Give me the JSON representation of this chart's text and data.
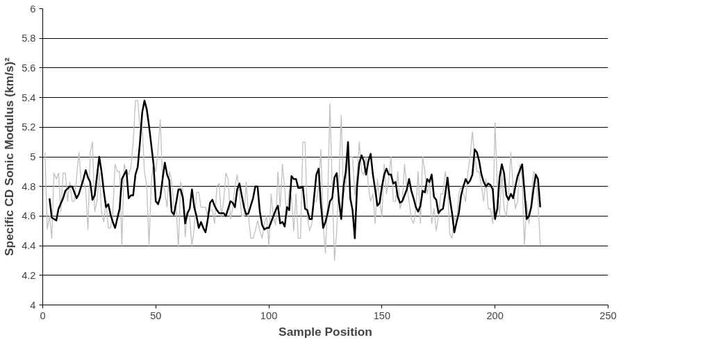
{
  "chart_data": {
    "type": "line",
    "xlabel": "Sample Position",
    "ylabel": "Specific CD Sonic Modulus (km/s)²",
    "xlim": [
      0,
      250
    ],
    "xticks": [
      0,
      50,
      100,
      150,
      200,
      250
    ],
    "ylim": [
      4,
      6
    ],
    "yticks": [
      4,
      {
        "value": 4.2,
        "label": "4.2"
      },
      {
        "value": 4.4,
        "label": "4.4"
      },
      {
        "value": 4.6,
        "label": "4.6"
      },
      {
        "value": 4.8,
        "label": "4.8"
      },
      5,
      {
        "value": 5.2,
        "label": "5.2"
      },
      {
        "value": 5.4,
        "label": "5.4"
      },
      {
        "value": 5.6,
        "label": "5.6"
      },
      {
        "value": 5.8,
        "label": "5.8"
      },
      6
    ],
    "grid": "y",
    "marker": "none",
    "line_style": "solid",
    "series": [
      {
        "color": "#c0c0c0",
        "x": [
          1,
          2,
          3,
          4,
          5,
          6,
          7,
          8,
          9,
          10,
          11,
          12,
          13,
          14,
          16,
          17,
          18,
          19,
          20,
          21,
          22,
          23,
          24,
          25,
          26,
          27,
          28,
          29,
          30,
          31,
          32,
          33,
          34,
          35,
          36,
          37,
          38,
          39,
          40,
          41,
          42,
          43,
          44,
          45,
          46,
          47,
          48,
          49,
          50,
          51,
          52,
          53,
          54,
          55,
          56,
          57,
          58,
          59,
          60,
          61,
          62,
          63,
          64,
          65,
          66,
          67,
          68,
          69,
          70,
          71,
          72,
          73,
          74,
          75,
          76,
          77,
          78,
          79,
          80,
          81,
          82,
          83,
          84,
          85,
          86,
          87,
          88,
          89,
          90,
          91,
          92,
          93,
          94,
          95,
          96,
          97,
          98,
          99,
          100,
          101,
          102,
          103,
          104,
          105,
          106,
          107,
          108,
          109,
          110,
          111,
          112,
          113,
          114,
          115,
          116,
          117,
          118,
          119,
          120,
          121,
          122,
          123,
          124,
          125,
          126,
          127,
          128,
          129,
          130,
          131,
          132,
          133,
          134,
          135,
          136,
          137,
          138,
          139,
          140,
          141,
          142,
          143,
          144,
          145,
          146,
          147,
          148,
          149,
          150,
          151,
          152,
          153,
          154,
          155,
          156,
          157,
          158,
          159,
          160,
          161,
          162,
          163,
          164,
          165,
          166,
          167,
          168,
          169,
          170,
          171,
          172,
          173,
          174,
          175,
          176,
          177,
          178,
          179,
          180,
          181,
          182,
          183,
          184,
          185,
          186,
          187,
          188,
          189,
          190,
          191,
          192,
          193,
          194,
          195,
          196,
          197,
          198,
          199,
          200,
          201,
          202,
          203,
          204,
          205,
          206,
          207,
          208,
          209,
          210,
          211,
          212,
          213,
          214,
          215,
          216,
          217,
          218,
          219,
          220
        ],
        "values": [
          5.03,
          4.51,
          4.6,
          4.45,
          4.89,
          4.85,
          4.89,
          4.63,
          4.89,
          4.89,
          4.7,
          4.83,
          4.7,
          4.7,
          5.03,
          4.83,
          4.83,
          4.78,
          4.51,
          5.03,
          5.1,
          4.63,
          4.7,
          4.9,
          4.63,
          4.56,
          4.7,
          4.52,
          4.52,
          4.63,
          4.95,
          4.9,
          4.9,
          4.4,
          4.95,
          4.9,
          4.88,
          4.93,
          5.1,
          5.38,
          5.38,
          5.2,
          5.2,
          4.9,
          4.8,
          4.4,
          4.83,
          4.95,
          4.9,
          5.05,
          5.25,
          4.84,
          4.76,
          4.66,
          4.9,
          4.84,
          4.66,
          4.66,
          4.39,
          4.83,
          4.77,
          4.46,
          4.63,
          4.58,
          4.4,
          4.52,
          4.76,
          4.76,
          4.66,
          4.66,
          4.66,
          4.6,
          4.64,
          4.64,
          4.55,
          4.8,
          4.82,
          4.6,
          4.7,
          4.89,
          4.85,
          4.58,
          4.65,
          4.8,
          4.88,
          4.75,
          4.6,
          4.6,
          4.83,
          4.6,
          4.45,
          4.45,
          4.5,
          4.57,
          4.5,
          4.45,
          4.55,
          4.6,
          4.4,
          4.75,
          4.59,
          4.54,
          4.9,
          4.66,
          4.95,
          4.78,
          4.59,
          4.78,
          4.72,
          4.5,
          4.75,
          4.45,
          4.45,
          5.1,
          5.1,
          4.6,
          4.5,
          4.55,
          4.7,
          4.7,
          4.8,
          5.05,
          4.55,
          4.35,
          4.7,
          5.36,
          4.8,
          4.3,
          4.5,
          4.85,
          5.28,
          4.75,
          4.8,
          5.0,
          5.0,
          5.0,
          4.74,
          4.88,
          5.1,
          4.9,
          4.88,
          5.0,
          4.8,
          4.7,
          4.75,
          4.55,
          4.85,
          4.7,
          4.6,
          4.95,
          4.75,
          4.85,
          5.0,
          4.7,
          4.7,
          4.9,
          4.65,
          4.7,
          4.95,
          4.8,
          4.7,
          4.58,
          4.55,
          4.65,
          4.9,
          4.55,
          5.0,
          4.9,
          4.75,
          4.85,
          4.55,
          4.65,
          4.5,
          4.6,
          4.75,
          4.75,
          4.9,
          4.8,
          4.48,
          4.45,
          4.6,
          4.55,
          4.75,
          4.8,
          4.75,
          4.7,
          4.9,
          5.0,
          5.17,
          5.0,
          4.9,
          4.9,
          4.8,
          4.7,
          4.85,
          4.65,
          4.65,
          4.55,
          5.23,
          4.8,
          4.6,
          4.9,
          4.65,
          4.6,
          4.75,
          5.03,
          4.8,
          4.65,
          4.7,
          4.95,
          4.85,
          4.4,
          4.7,
          4.55,
          4.7,
          4.9,
          4.88,
          4.7,
          4.4
        ]
      },
      {
        "color": "#000000",
        "x": [
          3,
          4,
          6,
          7,
          9,
          10,
          12,
          13,
          15,
          16,
          18,
          19,
          20,
          21,
          22,
          23,
          25,
          26,
          27,
          28,
          29,
          30,
          31,
          32,
          34,
          35,
          37,
          38,
          39,
          40,
          41,
          42,
          43,
          44,
          45,
          46,
          47,
          48,
          49,
          50,
          51,
          52,
          53,
          54,
          55,
          56,
          57,
          58,
          59,
          60,
          61,
          62,
          63,
          64,
          65,
          66,
          67,
          68,
          69,
          70,
          71,
          72,
          73,
          74,
          75,
          76,
          77,
          78,
          79,
          80,
          81,
          82,
          83,
          84,
          85,
          86,
          87,
          88,
          89,
          90,
          91,
          92,
          93,
          94,
          95,
          96,
          97,
          98,
          99,
          100,
          101,
          102,
          103,
          104,
          105,
          106,
          107,
          108,
          109,
          110,
          111,
          112,
          113,
          114,
          115,
          116,
          117,
          118,
          119,
          120,
          121,
          122,
          123,
          124,
          125,
          126,
          127,
          128,
          129,
          130,
          131,
          132,
          133,
          134,
          135,
          136,
          137,
          138,
          139,
          140,
          141,
          142,
          143,
          144,
          145,
          146,
          147,
          148,
          149,
          150,
          151,
          152,
          153,
          154,
          155,
          156,
          157,
          158,
          159,
          160,
          161,
          162,
          163,
          164,
          165,
          166,
          167,
          168,
          169,
          170,
          171,
          172,
          173,
          174,
          175,
          176,
          177,
          178,
          179,
          180,
          181,
          182,
          183,
          184,
          185,
          186,
          187,
          188,
          189,
          190,
          191,
          192,
          193,
          194,
          195,
          196,
          197,
          198,
          199,
          200,
          201,
          202,
          203,
          204,
          205,
          206,
          207,
          208,
          209,
          210,
          211,
          212,
          213,
          214,
          215,
          216,
          217,
          218,
          219,
          220
        ],
        "values": [
          4.72,
          4.59,
          4.57,
          4.65,
          4.72,
          4.77,
          4.8,
          4.8,
          4.72,
          4.75,
          4.85,
          4.91,
          4.86,
          4.83,
          4.71,
          4.74,
          5.0,
          4.9,
          4.77,
          4.66,
          4.68,
          4.61,
          4.56,
          4.52,
          4.65,
          4.85,
          4.91,
          4.72,
          4.74,
          4.74,
          4.88,
          4.93,
          5.1,
          5.3,
          5.38,
          5.32,
          5.21,
          5.08,
          4.95,
          4.7,
          4.68,
          4.73,
          4.85,
          4.96,
          4.88,
          4.84,
          4.63,
          4.61,
          4.69,
          4.78,
          4.78,
          4.72,
          4.55,
          4.62,
          4.65,
          4.78,
          4.66,
          4.6,
          4.52,
          4.56,
          4.52,
          4.49,
          4.58,
          4.69,
          4.71,
          4.67,
          4.64,
          4.62,
          4.62,
          4.62,
          4.6,
          4.65,
          4.7,
          4.69,
          4.66,
          4.78,
          4.82,
          4.74,
          4.66,
          4.61,
          4.62,
          4.67,
          4.72,
          4.8,
          4.8,
          4.63,
          4.54,
          4.51,
          4.52,
          4.52,
          4.56,
          4.6,
          4.64,
          4.67,
          4.55,
          4.56,
          4.53,
          4.66,
          4.64,
          4.87,
          4.85,
          4.85,
          4.79,
          4.79,
          4.8,
          4.65,
          4.64,
          4.58,
          4.58,
          4.73,
          4.88,
          4.92,
          4.68,
          4.52,
          4.56,
          4.62,
          4.7,
          4.72,
          4.86,
          4.89,
          4.7,
          4.58,
          4.8,
          4.9,
          5.1,
          4.72,
          4.64,
          4.45,
          4.8,
          4.96,
          5.01,
          4.97,
          4.88,
          4.97,
          5.02,
          4.88,
          4.78,
          4.67,
          4.69,
          4.8,
          4.88,
          4.92,
          4.88,
          4.88,
          4.82,
          4.83,
          4.73,
          4.69,
          4.7,
          4.74,
          4.78,
          4.85,
          4.77,
          4.72,
          4.66,
          4.63,
          4.67,
          4.77,
          4.76,
          4.85,
          4.83,
          4.88,
          4.73,
          4.71,
          4.62,
          4.64,
          4.65,
          4.75,
          4.86,
          4.72,
          4.62,
          4.49,
          4.56,
          4.62,
          4.74,
          4.8,
          4.85,
          4.82,
          4.84,
          4.88,
          5.05,
          5.03,
          4.97,
          4.88,
          4.83,
          4.8,
          4.82,
          4.81,
          4.78,
          4.58,
          4.65,
          4.86,
          4.95,
          4.89,
          4.74,
          4.71,
          4.75,
          4.72,
          4.8,
          4.87,
          4.91,
          4.95,
          4.77,
          4.58,
          4.6,
          4.66,
          4.78,
          4.88,
          4.85,
          4.66
        ]
      }
    ]
  }
}
